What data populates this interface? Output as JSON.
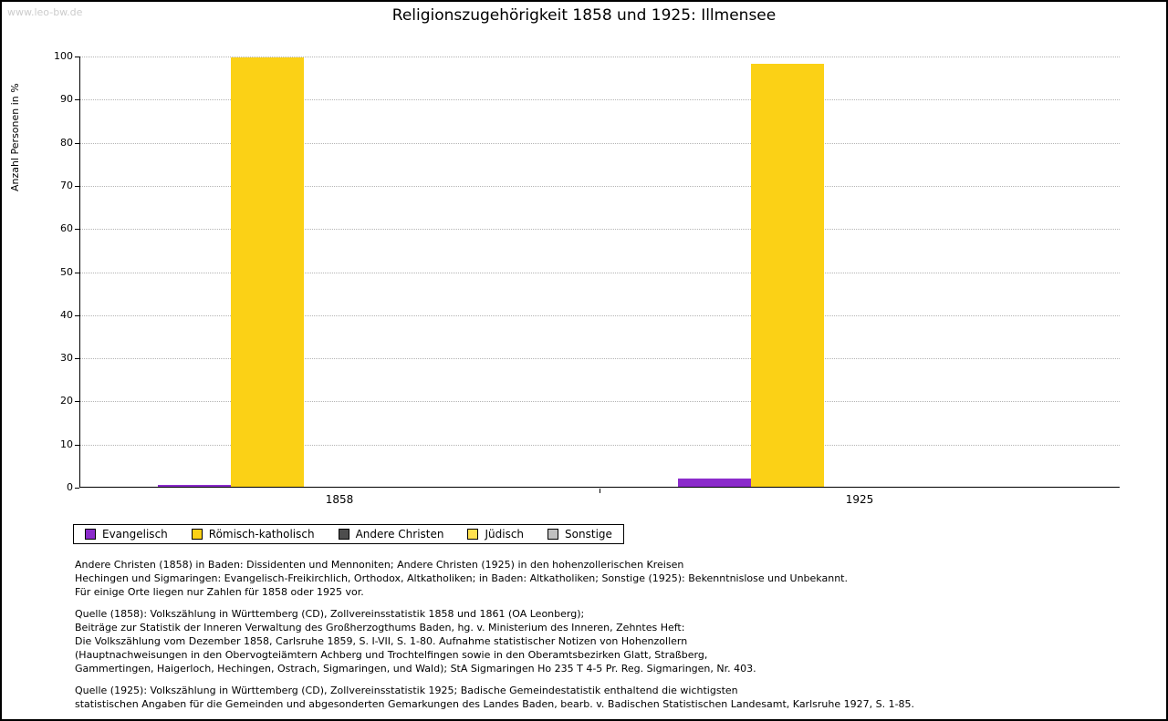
{
  "watermark": "www.leo-bw.de",
  "title": "Religionszugehörigkeit 1858 und 1925: Illmensee",
  "chart_data": {
    "type": "bar",
    "title": "Religionszugehörigkeit 1858 und 1925: Illmensee",
    "xlabel": "",
    "ylabel": "Anzahl Personen in %",
    "ylim": [
      0,
      100
    ],
    "ytick_step": 10,
    "grid": true,
    "legend_position": "bottom-left",
    "categories": [
      "1858",
      "1925"
    ],
    "series": [
      {
        "name": "Evangelisch",
        "color": "#8b2bcb",
        "values": [
          0.4,
          1.9
        ]
      },
      {
        "name": "Römisch-katholisch",
        "color": "#fbd116",
        "values": [
          99.6,
          98.1
        ]
      },
      {
        "name": "Andere Christen",
        "color": "#4d4d4d",
        "values": [
          0,
          0
        ]
      },
      {
        "name": "Jüdisch",
        "color": "#ffe14f",
        "values": [
          0,
          0
        ]
      },
      {
        "name": "Sonstige",
        "color": "#c0c0c0",
        "values": [
          0,
          0
        ]
      }
    ]
  },
  "footnotes": [
    [
      "Andere Christen (1858) in Baden: Dissidenten und Mennoniten; Andere Christen (1925) in den hohenzollerischen Kreisen",
      "Hechingen und Sigmaringen: Evangelisch-Freikirchlich, Orthodox, Altkatholiken; in Baden: Altkatholiken; Sonstige (1925): Bekenntnislose und Unbekannt.",
      "Für einige Orte liegen nur Zahlen für 1858 oder 1925 vor."
    ],
    [
      "Quelle (1858): Volkszählung in Württemberg (CD), Zollvereinsstatistik 1858 und 1861 (OA Leonberg);",
      "Beiträge zur Statistik der Inneren Verwaltung des Großherzogthums Baden, hg. v. Ministerium des Inneren, Zehntes Heft:",
      "Die Volkszählung vom Dezember 1858, Carlsruhe 1859, S. I-VII, S. 1-80. Aufnahme statistischer Notizen von Hohenzollern",
      "(Hauptnachweisungen in den Obervogteiämtern Achberg und Trochtelfingen sowie in den Oberamtsbezirken Glatt, Straßberg,",
      "Gammertingen, Haigerloch, Hechingen, Ostrach, Sigmaringen, und Wald); StA Sigmaringen Ho 235 T 4-5 Pr. Reg. Sigmaringen, Nr. 403."
    ],
    [
      "Quelle (1925): Volkszählung in Württemberg (CD), Zollvereinsstatistik 1925; Badische Gemeindestatistik enthaltend die wichtigsten",
      "statistischen Angaben für die Gemeinden und abgesonderten Gemarkungen des Landes Baden, bearb. v. Badischen Statistischen Landesamt, Karlsruhe 1927, S. 1-85."
    ]
  ]
}
